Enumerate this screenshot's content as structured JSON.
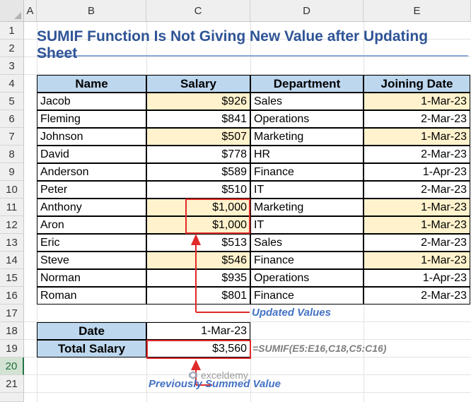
{
  "columns": [
    "A",
    "B",
    "C",
    "D",
    "E"
  ],
  "rows": [
    "1",
    "2",
    "3",
    "4",
    "5",
    "6",
    "7",
    "8",
    "9",
    "10",
    "11",
    "12",
    "13",
    "14",
    "15",
    "16",
    "17",
    "18",
    "19",
    "20",
    "21"
  ],
  "title": "SUMIF Function Is Not Giving New Value after Updating Sheet",
  "table": {
    "headers": [
      "Name",
      "Salary",
      "Department",
      "Joining Date"
    ],
    "rows": [
      [
        "Jacob",
        "$926",
        "Sales",
        "1-Mar-23"
      ],
      [
        "Fleming",
        "$841",
        "Operations",
        "2-Mar-23"
      ],
      [
        "Johnson",
        "$507",
        "Marketing",
        "1-Mar-23"
      ],
      [
        "David",
        "$778",
        "HR",
        "2-Mar-23"
      ],
      [
        "Anderson",
        "$589",
        "Finance",
        "1-Apr-23"
      ],
      [
        "Peter",
        "$510",
        "IT",
        "2-Mar-23"
      ],
      [
        "Anthony",
        "$1,000",
        "Marketing",
        "1-Mar-23"
      ],
      [
        "Aron",
        "$1,000",
        "IT",
        "1-Mar-23"
      ],
      [
        "Eric",
        "$513",
        "Sales",
        "2-Mar-23"
      ],
      [
        "Steve",
        "$546",
        "Finance",
        "1-Mar-23"
      ],
      [
        "Norman",
        "$935",
        "Operations",
        "1-Apr-23"
      ],
      [
        "Roman",
        "$801",
        "Finance",
        "2-Mar-23"
      ]
    ]
  },
  "summary": {
    "date_label": "Date",
    "date_value": "1-Mar-23",
    "total_label": "Total Salary",
    "total_value": "$3,560",
    "formula": "=SUMIF(E5:E16,C18,C5:C16)"
  },
  "annotations": {
    "updated": "Updated Values",
    "previous": "Previously Summed Value"
  },
  "watermark": "exceldemy",
  "colors": {
    "header_fill": "#bdd7ee",
    "highlight_fill": "#fff2cc",
    "title_color": "#2f5496",
    "annotation_color": "#4472c4",
    "arrow_color": "#e02a2a",
    "selected_row": "#217346"
  }
}
